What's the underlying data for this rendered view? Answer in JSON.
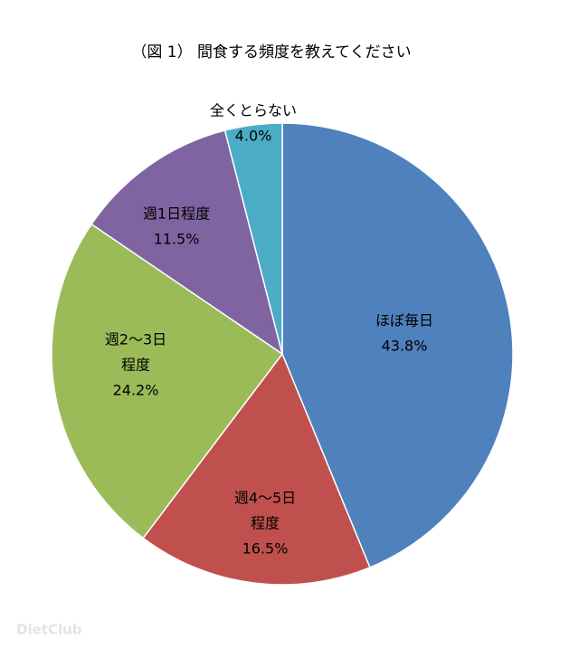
{
  "chart_data": {
    "type": "pie",
    "title": "（図 1） 間食する頻度を教えてください",
    "categories": [
      [
        "ほぼ毎日"
      ],
      [
        "週4～5日",
        "程度"
      ],
      [
        "週2～3日",
        "程度"
      ],
      [
        "週1日程度"
      ],
      [
        "全くとらない"
      ]
    ],
    "values": [
      43.8,
      16.5,
      24.2,
      11.5,
      4.0
    ],
    "value_labels": [
      "43.8%",
      "16.5%",
      "24.2%",
      "11.5%",
      "4.0%"
    ],
    "colors": [
      "#4f81bd",
      "#c0504d",
      "#9bbb59",
      "#8064a2",
      "#4bacc6"
    ],
    "start": "top",
    "direction": "clockwise"
  },
  "watermark": "DietClub"
}
